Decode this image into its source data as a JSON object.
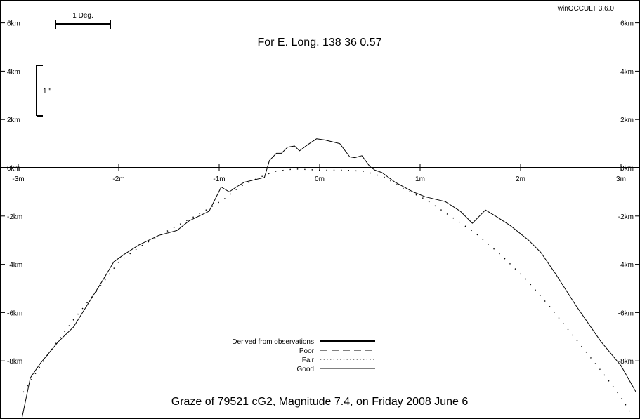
{
  "chart_data": {
    "type": "line",
    "software": "winOCCULT 3.6.0",
    "heading": "For E. Long.  138 36  0.57",
    "footer": "Graze of    79521  cG2,  Magnitude   7.4,  on Friday  2008  June   6",
    "scale_bar_label": "1 Deg.",
    "arcsec_label": "1 \"",
    "x_unit": "m",
    "y_unit": "km",
    "xlim": [
      -3.05,
      3.15
    ],
    "ylim": [
      -10.5,
      7.0
    ],
    "x_ticks": [
      -3,
      -2,
      -1,
      0,
      1,
      2,
      3
    ],
    "x_tick_labels": [
      "-3m",
      "-2m",
      "-1m",
      "0m",
      "1m",
      "2m",
      "3m"
    ],
    "y_ticks": [
      6,
      4,
      2,
      0,
      -2,
      -4,
      -6,
      -8
    ],
    "y_tick_labels": [
      "6km",
      "4km",
      "2km",
      "0km",
      "-2km",
      "-4km",
      "-6km",
      "-8km"
    ],
    "legend": [
      {
        "label": "Derived from observations",
        "style": "thick"
      },
      {
        "label": "Poor",
        "style": "dashed"
      },
      {
        "label": "Fair",
        "style": "dotted"
      },
      {
        "label": "Good",
        "style": "thin"
      }
    ],
    "legend_placement": "bottom-center",
    "series": [
      {
        "style": "thin",
        "x": [
          -2.97,
          -2.88,
          -2.78,
          -2.6,
          -2.45,
          -2.3,
          -2.15,
          -2.05,
          -1.95,
          -1.8,
          -1.6,
          -1.42,
          -1.3,
          -1.1,
          -0.98,
          -0.9,
          -0.83,
          -0.75,
          -0.65,
          -0.55,
          -0.5,
          -0.43,
          -0.38,
          -0.32,
          -0.25,
          -0.2,
          -0.12,
          -0.03,
          0.05,
          0.2,
          0.3,
          0.35,
          0.42,
          0.5,
          0.55,
          0.62,
          0.75,
          0.93,
          1.05,
          1.25,
          1.4,
          1.52,
          1.65,
          1.75,
          1.9,
          2.08,
          2.2,
          2.35,
          2.55,
          2.8,
          3.0,
          3.15
        ],
        "y": [
          -10.5,
          -8.7,
          -8.1,
          -7.2,
          -6.6,
          -5.6,
          -4.6,
          -3.9,
          -3.6,
          -3.2,
          -2.8,
          -2.6,
          -2.2,
          -1.8,
          -0.8,
          -1.0,
          -0.8,
          -0.6,
          -0.5,
          -0.4,
          0.3,
          0.6,
          0.6,
          0.85,
          0.9,
          0.7,
          0.95,
          1.2,
          1.15,
          1.0,
          0.45,
          0.42,
          0.5,
          0.05,
          -0.1,
          -0.2,
          -0.6,
          -1.0,
          -1.2,
          -1.4,
          -1.8,
          -2.3,
          -1.75,
          -2.0,
          -2.4,
          -3.0,
          -3.5,
          -4.4,
          -5.7,
          -7.2,
          -8.2,
          -9.3
        ]
      },
      {
        "style": "dotted",
        "x": [
          -2.95,
          -2.7,
          -2.45,
          -2.2,
          -2.0,
          -1.8,
          -1.55,
          -1.35,
          -1.15,
          -0.95,
          -0.8,
          -0.6,
          -0.45,
          -0.25,
          0.0,
          0.25,
          0.45,
          0.65,
          0.85,
          1.05,
          1.3,
          1.55,
          1.8,
          2.05,
          2.3,
          2.55,
          2.8,
          3.0,
          3.1
        ],
        "y": [
          -9.3,
          -7.7,
          -6.3,
          -5.0,
          -3.9,
          -3.3,
          -2.7,
          -2.25,
          -1.8,
          -1.3,
          -0.8,
          -0.4,
          -0.15,
          -0.05,
          -0.1,
          -0.1,
          -0.15,
          -0.4,
          -0.9,
          -1.3,
          -2.0,
          -2.7,
          -3.6,
          -4.6,
          -5.8,
          -7.1,
          -8.4,
          -9.5,
          -10.2
        ]
      }
    ]
  }
}
